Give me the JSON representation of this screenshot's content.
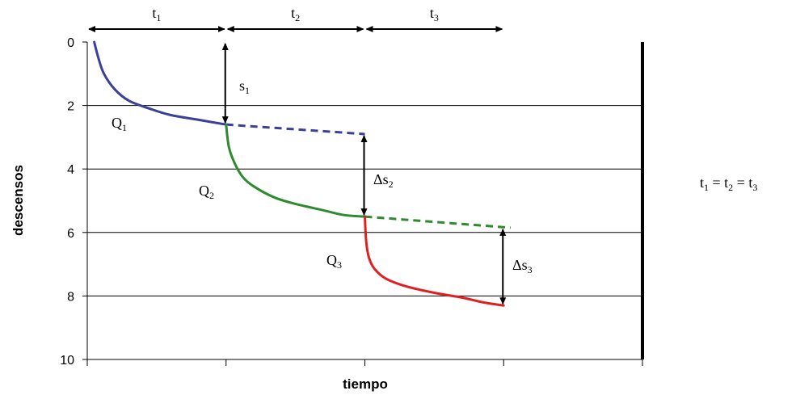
{
  "chart_data": {
    "type": "line",
    "xlabel": "tiempo",
    "ylabel": "descensos",
    "x_range": [
      0,
      4
    ],
    "ylim": [
      0,
      10
    ],
    "y_inverted": true,
    "yticks": [
      "0",
      "2",
      "4",
      "6",
      "8",
      "10"
    ],
    "grid": "horizontal",
    "series": [
      {
        "label": "Q1",
        "color": "#3a3f9a",
        "points": [
          [
            0.05,
            0
          ],
          [
            0.08,
            0.5
          ],
          [
            0.12,
            1.0
          ],
          [
            0.2,
            1.5
          ],
          [
            0.3,
            1.85
          ],
          [
            0.45,
            2.1
          ],
          [
            0.6,
            2.3
          ],
          [
            0.8,
            2.45
          ],
          [
            1.0,
            2.6
          ]
        ],
        "extension": [
          [
            1.0,
            2.6
          ],
          [
            2.0,
            2.9
          ]
        ]
      },
      {
        "label": "Q2",
        "color": "#2e8a2e",
        "points": [
          [
            1.0,
            2.6
          ],
          [
            1.02,
            3.3
          ],
          [
            1.06,
            3.8
          ],
          [
            1.12,
            4.25
          ],
          [
            1.2,
            4.55
          ],
          [
            1.35,
            4.9
          ],
          [
            1.5,
            5.1
          ],
          [
            1.7,
            5.3
          ],
          [
            1.85,
            5.45
          ],
          [
            2.0,
            5.5
          ]
        ],
        "extension": [
          [
            2.0,
            5.5
          ],
          [
            3.05,
            5.85
          ]
        ]
      },
      {
        "label": "Q3",
        "color": "#e02020",
        "points": [
          [
            2.0,
            5.5
          ],
          [
            2.01,
            6.3
          ],
          [
            2.03,
            6.8
          ],
          [
            2.07,
            7.15
          ],
          [
            2.15,
            7.45
          ],
          [
            2.3,
            7.7
          ],
          [
            2.5,
            7.9
          ],
          [
            2.7,
            8.05
          ],
          [
            2.85,
            8.2
          ],
          [
            3.0,
            8.3
          ]
        ]
      }
    ],
    "time_intervals": [
      {
        "label": "t",
        "sub": "1",
        "from": 0,
        "to": 1
      },
      {
        "label": "t",
        "sub": "2",
        "from": 1,
        "to": 2
      },
      {
        "label": "t",
        "sub": "3",
        "from": 2,
        "to": 3
      }
    ],
    "drawdown_arrows": [
      {
        "label": "s",
        "sub": "1",
        "x": 1.0,
        "from": 0,
        "to": 2.6
      },
      {
        "label": "Δs",
        "sub": "2",
        "x": 2.0,
        "from": 2.9,
        "to": 5.5
      },
      {
        "label": "Δs",
        "sub": "3",
        "x": 3.0,
        "from": 5.85,
        "to": 8.3
      }
    ],
    "equation": {
      "parts": [
        "t",
        "1",
        " = t",
        "2",
        " = t",
        "3"
      ]
    }
  }
}
